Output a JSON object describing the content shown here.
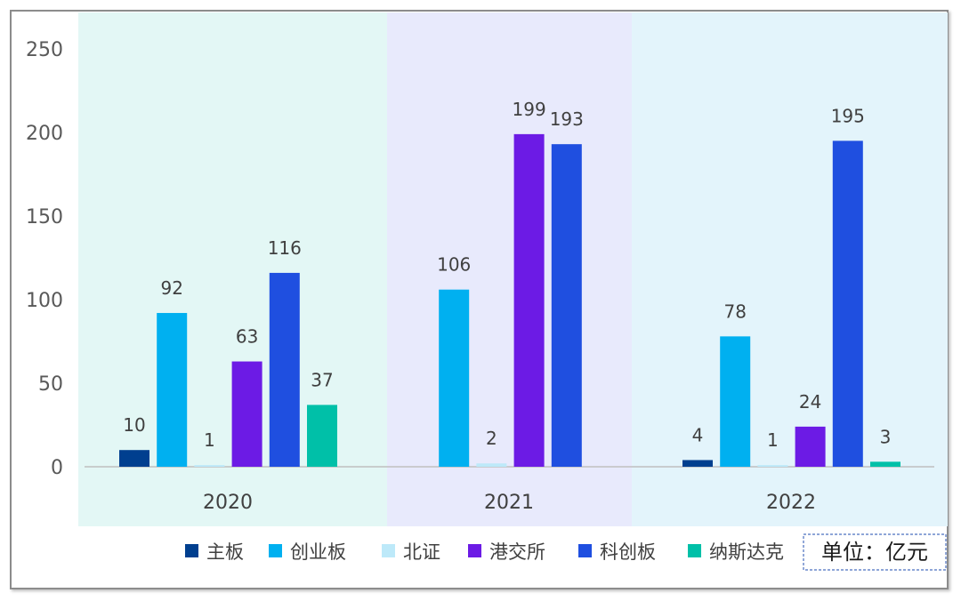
{
  "chart_data": {
    "type": "bar",
    "categories": [
      "2020",
      "2021",
      "2022"
    ],
    "series": [
      {
        "name": "主板",
        "color": "#003f8f",
        "values": [
          10,
          0,
          4
        ],
        "labels": [
          "10",
          "",
          "4"
        ]
      },
      {
        "name": "创业板",
        "color": "#00b0f0",
        "values": [
          92,
          106,
          78
        ],
        "labels": [
          "92",
          "106",
          "78"
        ]
      },
      {
        "name": "北证",
        "color": "#bde9f9",
        "values": [
          1,
          2,
          1
        ],
        "labels": [
          "1",
          "2",
          "1"
        ]
      },
      {
        "name": "港交所",
        "color": "#6c1be5",
        "values": [
          63,
          199,
          24
        ],
        "labels": [
          "63",
          "199",
          "24"
        ]
      },
      {
        "name": "科创板",
        "color": "#1f4fe0",
        "values": [
          116,
          193,
          195
        ],
        "labels": [
          "116",
          "193",
          "195"
        ]
      },
      {
        "name": "纳斯达克",
        "color": "#00c0a8",
        "values": [
          37,
          0,
          3
        ],
        "labels": [
          "37",
          "",
          "3"
        ]
      }
    ],
    "yticks": [
      "0",
      "50",
      "100",
      "150",
      "200",
      "250"
    ],
    "ylim": [
      0,
      250
    ],
    "band_colors": [
      "#e3f7f5",
      "#e8eafc",
      "#e3f4fb"
    ],
    "legend_position": "bottom",
    "unit_label": "单位：亿元"
  }
}
